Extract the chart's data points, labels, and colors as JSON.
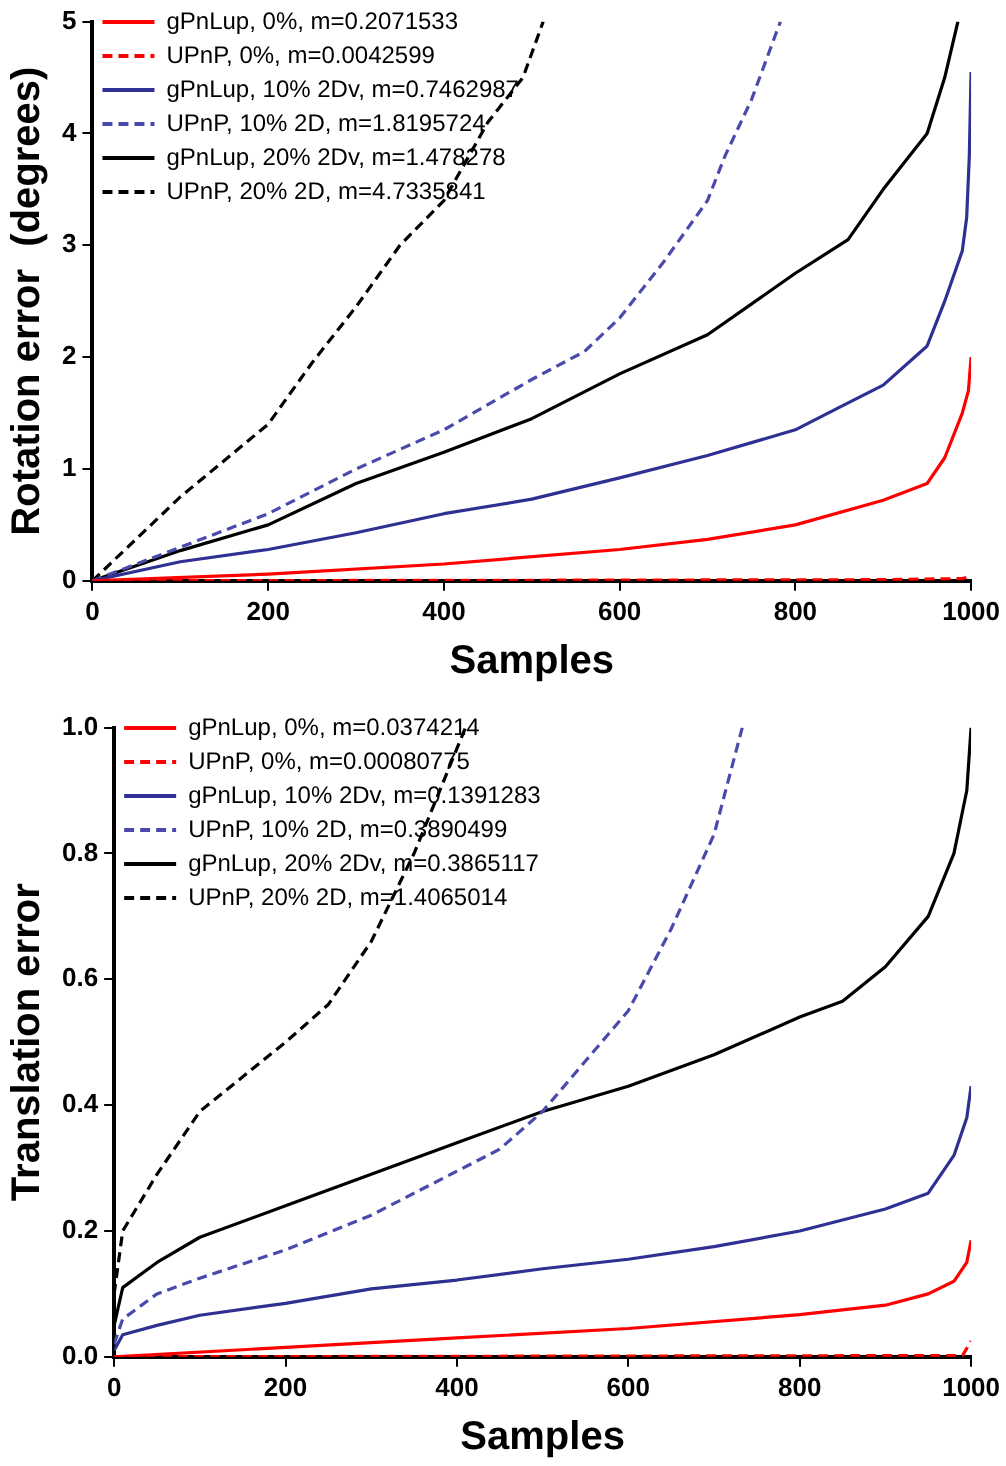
{
  "chart_data": [
    {
      "type": "line",
      "ylabel": "Rotation error  (degrees)",
      "xlabel": "Samples",
      "xlim": [
        0,
        1000
      ],
      "xticks": [
        0,
        200,
        400,
        600,
        800,
        1000
      ],
      "ylim": [
        0,
        5
      ],
      "yticks": [
        0,
        1,
        2,
        3,
        4,
        5
      ],
      "grid": false,
      "legend": "top left",
      "marker": "none",
      "series": [
        {
          "name": "gPnLup, 0%, m=0.2071533",
          "color": "#ff0000",
          "line_style": "solid",
          "x": [
            0,
            200,
            400,
            600,
            700,
            800,
            900,
            950,
            970,
            990,
            997,
            1000
          ],
          "values": [
            0,
            0.06,
            0.15,
            0.28,
            0.37,
            0.5,
            0.72,
            0.87,
            1.1,
            1.5,
            1.7,
            2.0
          ]
        },
        {
          "name": "UPnP, 0%, m=0.0042599",
          "color": "#ff0000",
          "line_style": "dashed",
          "x": [
            0,
            500,
            900,
            990,
            1000
          ],
          "values": [
            0,
            0.005,
            0.01,
            0.02,
            0.04
          ]
        },
        {
          "name": "gPnLup, 10% 2Dv, m=0.7462987",
          "color": "#2e3192",
          "line_style": "solid",
          "x": [
            0,
            100,
            200,
            300,
            400,
            500,
            600,
            700,
            800,
            850,
            900,
            950,
            970,
            990,
            995,
            998,
            1000
          ],
          "values": [
            0,
            0.17,
            0.28,
            0.43,
            0.6,
            0.73,
            0.92,
            1.12,
            1.35,
            1.55,
            1.75,
            2.1,
            2.5,
            2.95,
            3.25,
            3.8,
            4.55
          ]
        },
        {
          "name": "UPnP, 10% 2D, m=1.8195724",
          "color": "#4a4aad",
          "line_style": "dashed",
          "x": [
            0,
            100,
            200,
            300,
            400,
            500,
            560,
            600,
            650,
            700,
            720,
            750,
            783
          ],
          "values": [
            0,
            0.3,
            0.6,
            1.0,
            1.35,
            1.8,
            2.05,
            2.35,
            2.85,
            3.4,
            3.8,
            4.3,
            5.0
          ]
        },
        {
          "name": "gPnLup, 20% 2Dv, m=1.478278",
          "color": "#000000",
          "line_style": "solid",
          "x": [
            0,
            100,
            200,
            300,
            400,
            500,
            600,
            700,
            800,
            860,
            900,
            950,
            970,
            985
          ],
          "values": [
            0,
            0.27,
            0.5,
            0.87,
            1.15,
            1.45,
            1.85,
            2.2,
            2.75,
            3.05,
            3.5,
            4.0,
            4.5,
            5.0
          ]
        },
        {
          "name": "UPnP, 20% 2D, m=4.7335841",
          "color": "#000000",
          "line_style": "dashed",
          "x": [
            0,
            100,
            200,
            250,
            300,
            350,
            400,
            450,
            490,
            513
          ],
          "values": [
            0,
            0.75,
            1.4,
            1.95,
            2.45,
            3.0,
            3.4,
            4.1,
            4.5,
            5.0
          ]
        }
      ]
    },
    {
      "type": "line",
      "ylabel": "Translation error",
      "xlabel": "Samples",
      "xlim": [
        0,
        1000
      ],
      "xticks": [
        0,
        200,
        400,
        600,
        800,
        1000
      ],
      "ylim": [
        0,
        1
      ],
      "yticks": [
        {
          "value": 0,
          "label": "0.0"
        },
        {
          "value": 0.2,
          "label": "0.2"
        },
        {
          "value": 0.4,
          "label": "0.4"
        },
        {
          "value": 0.6,
          "label": "0.6"
        },
        {
          "value": 0.8,
          "label": "0.8"
        },
        {
          "value": 1,
          "label": "1.0"
        }
      ],
      "grid": false,
      "legend": "top left",
      "marker": "none",
      "series": [
        {
          "name": "gPnLup, 0%, m=0.0374214",
          "color": "#ff0000",
          "line_style": "solid",
          "x": [
            0,
            200,
            400,
            600,
            800,
            900,
            950,
            980,
            995,
            1000
          ],
          "values": [
            0,
            0.015,
            0.03,
            0.045,
            0.067,
            0.082,
            0.1,
            0.12,
            0.15,
            0.185
          ]
        },
        {
          "name": "UPnP, 0%, m=0.00080775",
          "color": "#ff0000",
          "line_style": "dashed",
          "x": [
            0,
            990,
            1000
          ],
          "values": [
            0,
            0.002,
            0.025
          ]
        },
        {
          "name": "gPnLup, 10% 2Dv, m=0.1391283",
          "color": "#2e3192",
          "line_style": "solid",
          "x": [
            0,
            10,
            50,
            100,
            200,
            300,
            400,
            500,
            600,
            700,
            800,
            900,
            950,
            980,
            995,
            1000
          ],
          "values": [
            0.01,
            0.035,
            0.05,
            0.066,
            0.085,
            0.108,
            0.122,
            0.14,
            0.155,
            0.175,
            0.2,
            0.235,
            0.26,
            0.32,
            0.38,
            0.43
          ]
        },
        {
          "name": "UPnP, 10% 2D, m=0.3890499",
          "color": "#4a4aad",
          "line_style": "dashed",
          "x": [
            0,
            10,
            50,
            100,
            200,
            300,
            400,
            450,
            500,
            550,
            600,
            650,
            700,
            733
          ],
          "values": [
            0.02,
            0.06,
            0.1,
            0.125,
            0.17,
            0.225,
            0.295,
            0.33,
            0.39,
            0.47,
            0.55,
            0.68,
            0.83,
            1.0
          ]
        },
        {
          "name": "gPnLup, 20% 2Dv, m=0.3865117",
          "color": "#000000",
          "line_style": "solid",
          "x": [
            0,
            10,
            50,
            100,
            200,
            300,
            400,
            500,
            600,
            700,
            800,
            850,
            900,
            950,
            980,
            995,
            1000
          ],
          "values": [
            0.05,
            0.11,
            0.15,
            0.19,
            0.24,
            0.29,
            0.34,
            0.39,
            0.43,
            0.48,
            0.54,
            0.565,
            0.62,
            0.7,
            0.8,
            0.9,
            1.0
          ]
        },
        {
          "name": "UPnP, 20% 2D, m=1.4065014",
          "color": "#000000",
          "line_style": "dashed",
          "x": [
            0,
            10,
            50,
            100,
            200,
            250,
            300,
            350,
            380,
            410
          ],
          "values": [
            0.1,
            0.2,
            0.29,
            0.39,
            0.5,
            0.56,
            0.66,
            0.8,
            0.9,
            1.0
          ]
        }
      ]
    }
  ]
}
